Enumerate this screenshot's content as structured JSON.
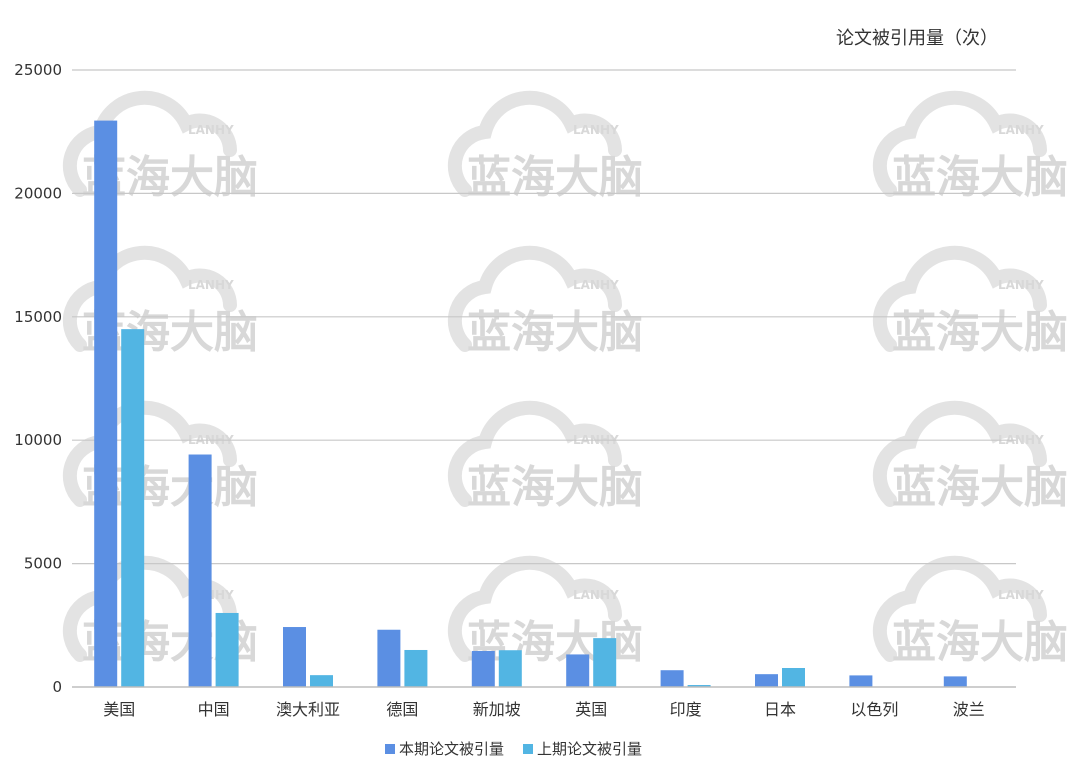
{
  "chart_data": {
    "type": "bar",
    "unit_label": "论文被引用量（次）",
    "categories": [
      "美国",
      "中国",
      "澳大利亚",
      "德国",
      "新加坡",
      "英国",
      "印度",
      "日本",
      "以色列",
      "波兰"
    ],
    "series": [
      {
        "name": "本期论文被引量",
        "color": "#5b8fe3",
        "values": [
          22950,
          9420,
          2430,
          2320,
          1460,
          1320,
          680,
          520,
          470,
          430
        ]
      },
      {
        "name": "上期论文被引量",
        "color": "#52b5e3",
        "values": [
          14500,
          3000,
          480,
          1500,
          1490,
          1980,
          80,
          770,
          null,
          null
        ]
      }
    ],
    "ylim": [
      0,
      25000
    ],
    "yticks": [
      0,
      5000,
      10000,
      15000,
      20000,
      25000
    ],
    "grid": true,
    "legend_position": "bottom"
  },
  "watermark": {
    "main": "蓝海大脑",
    "sub": "LANHY"
  }
}
